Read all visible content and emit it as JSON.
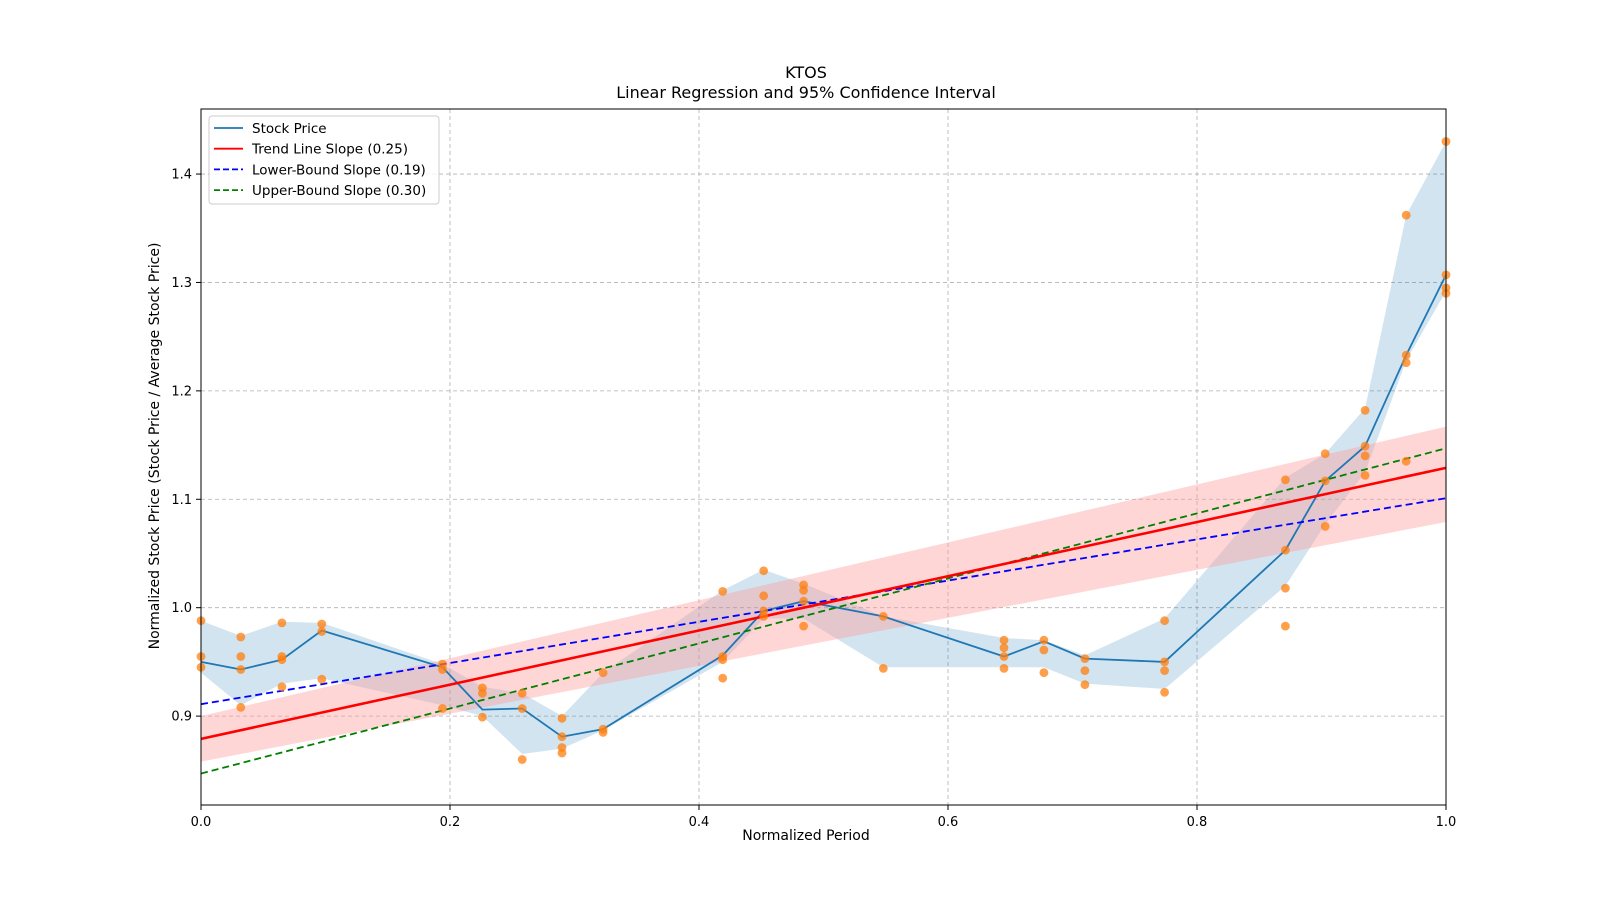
{
  "chart_data": {
    "type": "line",
    "title": "KTOS",
    "subtitle": "Linear Regression and 95% Confidence Interval",
    "xlabel": "Normalized Period",
    "ylabel": "Normalized Stock Price (Stock Price / Average Stock Price)",
    "xlim": [
      0.0,
      1.0
    ],
    "ylim": [
      0.818,
      1.46
    ],
    "xticks": [
      0.0,
      0.2,
      0.4,
      0.6,
      0.8,
      1.0
    ],
    "xtick_labels": [
      "0.0",
      "0.2",
      "0.4",
      "0.6",
      "0.8",
      "1.0"
    ],
    "yticks": [
      0.9,
      1.0,
      1.1,
      1.2,
      1.3,
      1.4
    ],
    "ytick_labels": [
      "0.9",
      "1.0",
      "1.1",
      "1.2",
      "1.3",
      "1.4"
    ],
    "grid": true,
    "legend_position": "top-left",
    "colors": {
      "stock": "#1f77b4",
      "stock_band": "#1f77b4",
      "trend": "#ff0000",
      "trend_band": "#ff9999",
      "lower": "#0000ff",
      "upper": "#008000",
      "points": "#ff7f0e"
    },
    "legend": [
      {
        "label": "Stock Price",
        "style": "solid",
        "color": "#1f77b4"
      },
      {
        "label": "Trend Line Slope (0.25)",
        "style": "solid",
        "color": "#ff0000"
      },
      {
        "label": "Lower-Bound Slope (0.19)",
        "style": "dashed",
        "color": "#0000ff"
      },
      {
        "label": "Upper-Bound Slope (0.30)",
        "style": "dashed",
        "color": "#008000"
      }
    ],
    "stock_price": {
      "x": [
        0.0,
        0.032,
        0.065,
        0.097,
        0.194,
        0.226,
        0.258,
        0.29,
        0.323,
        0.419,
        0.452,
        0.484,
        0.548,
        0.645,
        0.677,
        0.71,
        0.774,
        0.871,
        0.903,
        0.935,
        0.968,
        1.0
      ],
      "y": [
        0.95,
        0.943,
        0.952,
        0.979,
        0.945,
        0.906,
        0.907,
        0.881,
        0.888,
        0.956,
        0.997,
        1.006,
        0.992,
        0.955,
        0.969,
        0.953,
        0.95,
        1.053,
        1.117,
        1.149,
        1.233,
        1.307
      ],
      "band_lower": [
        0.94,
        0.91,
        0.93,
        0.935,
        0.91,
        0.9,
        0.865,
        0.87,
        0.887,
        0.95,
        0.99,
        0.99,
        0.945,
        0.945,
        0.945,
        0.93,
        0.925,
        1.02,
        1.077,
        1.125,
        1.228,
        1.292
      ],
      "band_upper": [
        0.988,
        0.974,
        0.987,
        0.986,
        0.948,
        0.927,
        0.921,
        0.9,
        0.94,
        1.016,
        1.035,
        1.022,
        0.992,
        0.972,
        0.97,
        0.956,
        0.99,
        1.12,
        1.142,
        1.184,
        1.362,
        1.43
      ]
    },
    "trend_line": {
      "slope": 0.25,
      "intercept": 0.879,
      "band_at_x0": [
        0.858,
        0.9
      ],
      "band_at_x1": [
        1.079,
        1.167
      ]
    },
    "lower_bound_line": {
      "slope": 0.19,
      "intercept": 0.911
    },
    "upper_bound_line": {
      "slope": 0.3,
      "intercept": 0.847
    },
    "scatter_points": [
      [
        0.0,
        0.988
      ],
      [
        0.0,
        0.955
      ],
      [
        0.0,
        0.945
      ],
      [
        0.032,
        0.973
      ],
      [
        0.032,
        0.955
      ],
      [
        0.032,
        0.943
      ],
      [
        0.032,
        0.908
      ],
      [
        0.065,
        0.986
      ],
      [
        0.065,
        0.955
      ],
      [
        0.065,
        0.952
      ],
      [
        0.065,
        0.927
      ],
      [
        0.097,
        0.985
      ],
      [
        0.097,
        0.978
      ],
      [
        0.097,
        0.934
      ],
      [
        0.194,
        0.948
      ],
      [
        0.194,
        0.943
      ],
      [
        0.194,
        0.907
      ],
      [
        0.226,
        0.926
      ],
      [
        0.226,
        0.921
      ],
      [
        0.226,
        0.899
      ],
      [
        0.258,
        0.921
      ],
      [
        0.258,
        0.907
      ],
      [
        0.258,
        0.86
      ],
      [
        0.29,
        0.898
      ],
      [
        0.29,
        0.881
      ],
      [
        0.29,
        0.871
      ],
      [
        0.29,
        0.866
      ],
      [
        0.323,
        0.94
      ],
      [
        0.323,
        0.888
      ],
      [
        0.323,
        0.885
      ],
      [
        0.419,
        1.015
      ],
      [
        0.419,
        0.955
      ],
      [
        0.419,
        0.952
      ],
      [
        0.419,
        0.935
      ],
      [
        0.452,
        1.034
      ],
      [
        0.452,
        1.011
      ],
      [
        0.452,
        0.997
      ],
      [
        0.452,
        0.992
      ],
      [
        0.484,
        1.021
      ],
      [
        0.484,
        1.016
      ],
      [
        0.484,
        1.006
      ],
      [
        0.484,
        0.983
      ],
      [
        0.548,
        0.992
      ],
      [
        0.548,
        0.944
      ],
      [
        0.645,
        0.97
      ],
      [
        0.645,
        0.963
      ],
      [
        0.645,
        0.955
      ],
      [
        0.645,
        0.944
      ],
      [
        0.677,
        0.97
      ],
      [
        0.677,
        0.961
      ],
      [
        0.677,
        0.94
      ],
      [
        0.71,
        0.953
      ],
      [
        0.71,
        0.942
      ],
      [
        0.71,
        0.929
      ],
      [
        0.774,
        0.988
      ],
      [
        0.774,
        0.95
      ],
      [
        0.774,
        0.942
      ],
      [
        0.774,
        0.922
      ],
      [
        0.871,
        1.118
      ],
      [
        0.871,
        1.053
      ],
      [
        0.871,
        1.018
      ],
      [
        0.871,
        0.983
      ],
      [
        0.903,
        1.142
      ],
      [
        0.903,
        1.117
      ],
      [
        0.903,
        1.075
      ],
      [
        0.935,
        1.182
      ],
      [
        0.935,
        1.149
      ],
      [
        0.935,
        1.14
      ],
      [
        0.935,
        1.122
      ],
      [
        0.968,
        1.362
      ],
      [
        0.968,
        1.233
      ],
      [
        0.968,
        1.226
      ],
      [
        0.968,
        1.135
      ],
      [
        1.0,
        1.43
      ],
      [
        1.0,
        1.307
      ],
      [
        1.0,
        1.295
      ],
      [
        1.0,
        1.29
      ]
    ]
  }
}
